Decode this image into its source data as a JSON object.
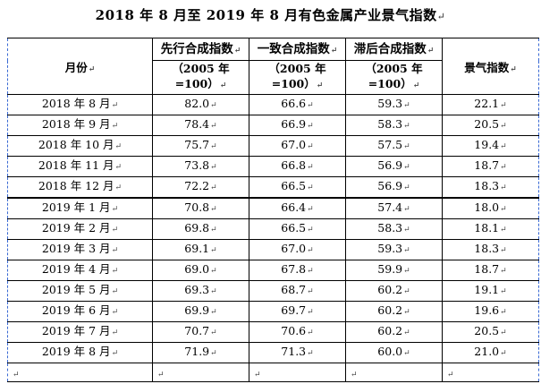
{
  "title": "2018 年 8 月至 2019 年 8 月有色金属产业景气指数",
  "para_mark": "↵",
  "headers": {
    "month": "月份",
    "leading": "先行合成指数",
    "coincident": "一致合成指数",
    "lagging": "滞后合成指数",
    "base_note": "（2005 年=100）",
    "prosperity": "景气指数"
  },
  "rows": [
    {
      "month": "2018 年 8 月",
      "leading": "82.0",
      "coincident": "66.6",
      "lagging": "59.3",
      "prosperity": "22.1"
    },
    {
      "month": "2018 年 9 月",
      "leading": "78.4",
      "coincident": "66.9",
      "lagging": "58.3",
      "prosperity": "20.5"
    },
    {
      "month": "2018 年 10 月",
      "leading": "75.7",
      "coincident": "67.0",
      "lagging": "57.5",
      "prosperity": "19.4"
    },
    {
      "month": "2018 年 11 月",
      "leading": "73.8",
      "coincident": "66.8",
      "lagging": "56.9",
      "prosperity": "18.7"
    },
    {
      "month": "2018 年 12 月",
      "leading": "72.2",
      "coincident": "66.5",
      "lagging": "56.9",
      "prosperity": "18.3"
    },
    {
      "month": "2019 年 1 月",
      "leading": "70.8",
      "coincident": "66.4",
      "lagging": "57.4",
      "prosperity": "18.0"
    },
    {
      "month": "2019 年 2 月",
      "leading": "69.8",
      "coincident": "66.5",
      "lagging": "58.3",
      "prosperity": "18.1"
    },
    {
      "month": "2019 年 3 月",
      "leading": "69.1",
      "coincident": "67.0",
      "lagging": "59.3",
      "prosperity": "18.3"
    },
    {
      "month": "2019 年 4 月",
      "leading": "69.0",
      "coincident": "67.8",
      "lagging": "59.9",
      "prosperity": "18.7"
    },
    {
      "month": "2019 年 5 月",
      "leading": "69.3",
      "coincident": "68.7",
      "lagging": "60.2",
      "prosperity": "19.1"
    },
    {
      "month": "2019 年 6 月",
      "leading": "69.9",
      "coincident": "69.7",
      "lagging": "60.2",
      "prosperity": "19.6"
    },
    {
      "month": "2019 年 7 月",
      "leading": "70.7",
      "coincident": "70.6",
      "lagging": "60.2",
      "prosperity": "20.5"
    },
    {
      "month": "2019 年 8 月",
      "leading": "71.9",
      "coincident": "71.3",
      "lagging": "60.0",
      "prosperity": "21.0"
    }
  ]
}
